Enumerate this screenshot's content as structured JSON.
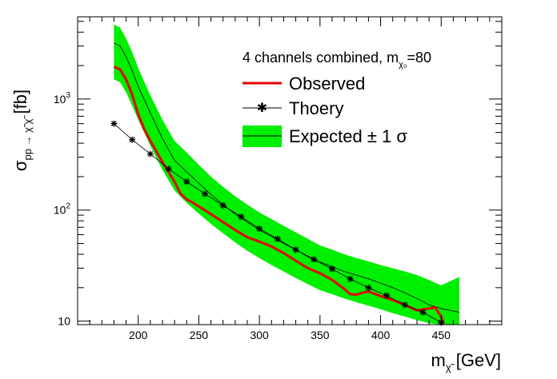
{
  "chart_data": {
    "type": "line",
    "x_axis": {
      "label_main": "m",
      "label_sub": "χ̃",
      "label_unit": " [GeV]",
      "range": [
        150,
        500
      ],
      "ticks": [
        "200",
        "250",
        "300",
        "350",
        "400",
        "450"
      ],
      "tick_values": [
        200,
        250,
        300,
        350,
        400,
        450
      ]
    },
    "y_axis": {
      "label_main": "σ",
      "label_sub": "pp → χ̃ χ̃",
      "label_unit": " [fb]",
      "scale": "log",
      "range": [
        9.3,
        5500
      ],
      "ticks": [
        {
          "value": 10,
          "base": "10",
          "exp": ""
        },
        {
          "value": 100,
          "base": "10",
          "exp": "2"
        },
        {
          "value": 1000,
          "base": "10",
          "exp": "3"
        }
      ]
    },
    "legend": {
      "position": "top-right",
      "title_main": "4 channels combined, m",
      "title_sub": "χ₀",
      "title_tail": "=80",
      "entries": [
        {
          "key": "observed",
          "label": "Observed"
        },
        {
          "key": "theory",
          "label": "Thoery"
        },
        {
          "key": "expected",
          "label": "Expected ± 1 σ"
        }
      ]
    },
    "colors": {
      "observed": "#e60000",
      "theory": "#000000",
      "expected_line": "#000000",
      "band": "#00ee00"
    },
    "series": [
      {
        "name": "Observed",
        "key": "observed",
        "x": [
          180,
          185,
          190,
          195,
          200,
          205,
          210,
          220,
          230,
          235,
          240,
          245,
          250,
          260,
          270,
          280,
          290,
          300,
          310,
          320,
          330,
          340,
          350,
          360,
          370,
          375,
          380,
          385,
          390,
          400,
          410,
          420,
          430,
          440,
          445,
          450,
          452
        ],
        "y": [
          1950,
          1850,
          1500,
          1100,
          730,
          530,
          420,
          270,
          180,
          140,
          125,
          117,
          108,
          92,
          78,
          66,
          57,
          52,
          47,
          41,
          35,
          30,
          27,
          23.5,
          19.5,
          17.5,
          17.3,
          18.0,
          18.5,
          16.8,
          15.5,
          14.0,
          12.5,
          13.0,
          13.3,
          11.0,
          9.4
        ]
      },
      {
        "name": "Thoery",
        "key": "theory",
        "x": [
          180,
          195,
          210,
          225,
          240,
          255,
          270,
          285,
          300,
          315,
          330,
          345,
          360,
          375,
          390,
          405,
          420,
          435,
          450
        ],
        "y": [
          600,
          430,
          320,
          235,
          180,
          140,
          110,
          87,
          68,
          55,
          44,
          36,
          29.5,
          24,
          20,
          17,
          14,
          12,
          9.7
        ]
      },
      {
        "name": "Expected",
        "key": "expected",
        "x": [
          180,
          185,
          190,
          195,
          200,
          210,
          220,
          230,
          240,
          250,
          260,
          270,
          280,
          290,
          300,
          310,
          320,
          330,
          340,
          350,
          360,
          370,
          380,
          390,
          400,
          410,
          420,
          430,
          440,
          450,
          465
        ],
        "y": [
          3200,
          3000,
          2400,
          1800,
          1300,
          750,
          440,
          280,
          220,
          175,
          138,
          112,
          92,
          78,
          66,
          58,
          50,
          44,
          38,
          34,
          31,
          28,
          26,
          24,
          22,
          20,
          18,
          16,
          14,
          13,
          12
        ],
        "band_low": [
          1500,
          1420,
          1150,
          870,
          650,
          380,
          230,
          150,
          116,
          93,
          75,
          62,
          51,
          43,
          37,
          32,
          28,
          24.5,
          21.5,
          19,
          17.5,
          16,
          14.8,
          13.8,
          12.8,
          11.8,
          11,
          10.2,
          9.6,
          9.3,
          9.3
        ],
        "band_high": [
          4700,
          4400,
          3500,
          2650,
          1900,
          1080,
          650,
          420,
          330,
          255,
          200,
          162,
          133,
          112,
          95,
          83,
          72,
          63,
          55,
          48,
          44,
          40,
          37,
          34.5,
          32,
          30,
          28,
          26,
          23.5,
          21,
          25
        ]
      }
    ]
  }
}
